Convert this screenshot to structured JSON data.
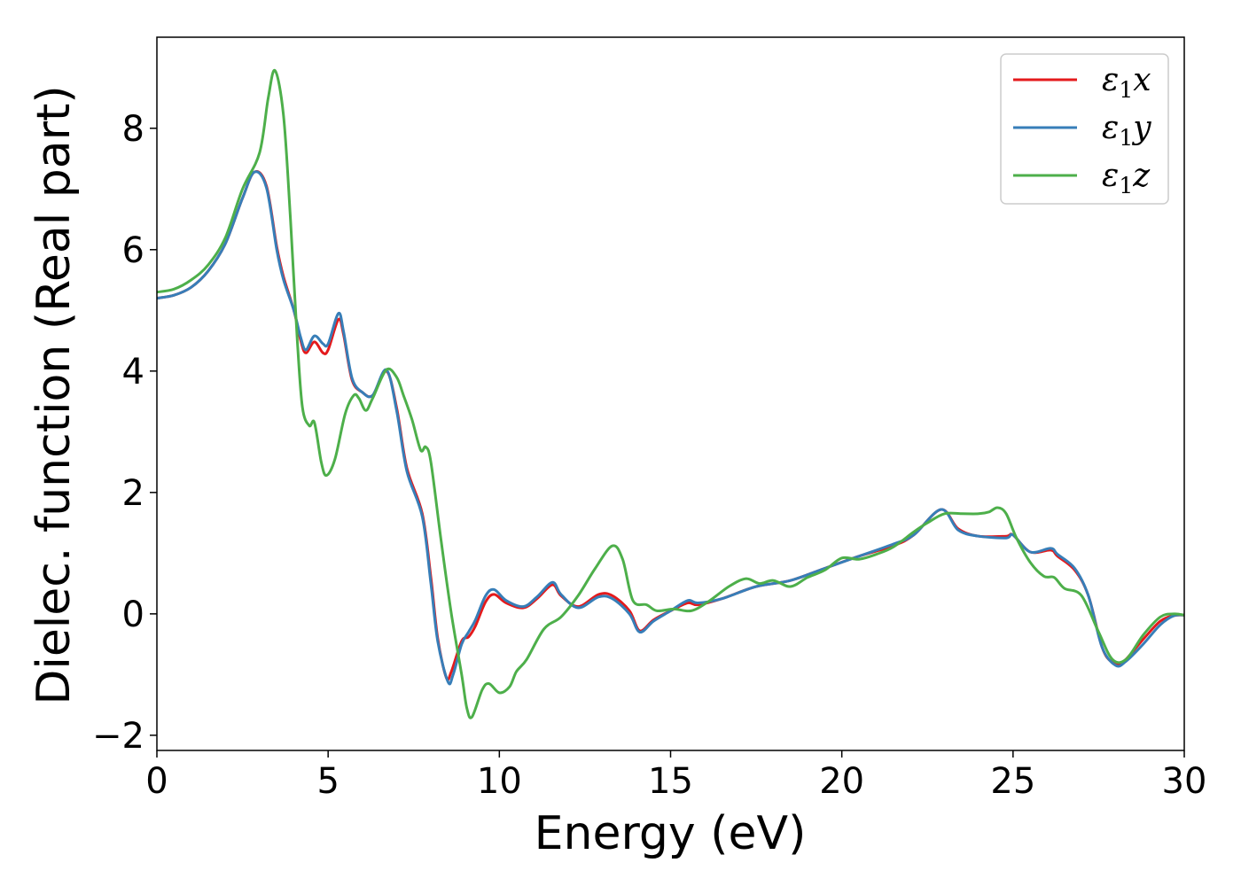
{
  "chart_data": {
    "type": "line",
    "title": "",
    "xlabel": "Energy (eV)",
    "ylabel": "Dielec. function (Real part)",
    "xlim": [
      0,
      30
    ],
    "ylim": [
      -2.25,
      9.5
    ],
    "xticks": [
      0,
      5,
      10,
      15,
      20,
      25,
      30
    ],
    "xtick_labels": [
      "0",
      "5",
      "10",
      "15",
      "20",
      "25",
      "30"
    ],
    "yticks": [
      -2,
      0,
      2,
      4,
      6,
      8
    ],
    "ytick_labels": [
      "−2",
      "0",
      "2",
      "4",
      "6",
      "8"
    ],
    "grid": false,
    "legend_position": "top-right",
    "series": [
      {
        "name": "ε₁x",
        "legend_base": "ε",
        "legend_sub": "1",
        "legend_suffix": "x",
        "color": "#e41a1c",
        "points": [
          [
            0,
            5.2
          ],
          [
            0.5,
            5.25
          ],
          [
            1,
            5.38
          ],
          [
            1.5,
            5.65
          ],
          [
            2,
            6.1
          ],
          [
            2.5,
            6.85
          ],
          [
            2.85,
            7.28
          ],
          [
            3.2,
            7.05
          ],
          [
            3.5,
            6.05
          ],
          [
            3.7,
            5.55
          ],
          [
            4.0,
            5.0
          ],
          [
            4.2,
            4.5
          ],
          [
            4.35,
            4.3
          ],
          [
            4.6,
            4.48
          ],
          [
            4.85,
            4.3
          ],
          [
            5.0,
            4.35
          ],
          [
            5.3,
            4.85
          ],
          [
            5.45,
            4.6
          ],
          [
            5.7,
            3.85
          ],
          [
            6.0,
            3.65
          ],
          [
            6.3,
            3.6
          ],
          [
            6.7,
            4.0
          ],
          [
            7.0,
            3.4
          ],
          [
            7.3,
            2.4
          ],
          [
            7.75,
            1.65
          ],
          [
            8.0,
            0.6
          ],
          [
            8.2,
            -0.4
          ],
          [
            8.45,
            -1.05
          ],
          [
            8.6,
            -0.95
          ],
          [
            8.9,
            -0.45
          ],
          [
            9.1,
            -0.38
          ],
          [
            9.3,
            -0.2
          ],
          [
            9.6,
            0.2
          ],
          [
            9.85,
            0.32
          ],
          [
            10.2,
            0.18
          ],
          [
            10.7,
            0.1
          ],
          [
            11.1,
            0.25
          ],
          [
            11.55,
            0.48
          ],
          [
            11.8,
            0.3
          ],
          [
            12.3,
            0.12
          ],
          [
            12.9,
            0.32
          ],
          [
            13.3,
            0.3
          ],
          [
            13.8,
            0.05
          ],
          [
            14.1,
            -0.28
          ],
          [
            14.5,
            -0.1
          ],
          [
            15,
            0.05
          ],
          [
            15.5,
            0.18
          ],
          [
            15.8,
            0.15
          ],
          [
            16.5,
            0.25
          ],
          [
            17.5,
            0.45
          ],
          [
            18.5,
            0.55
          ],
          [
            19.5,
            0.75
          ],
          [
            20.5,
            0.95
          ],
          [
            21.5,
            1.12
          ],
          [
            22.1,
            1.3
          ],
          [
            22.9,
            1.72
          ],
          [
            23.4,
            1.4
          ],
          [
            24,
            1.28
          ],
          [
            24.8,
            1.28
          ],
          [
            25.0,
            1.3
          ],
          [
            25.5,
            1.02
          ],
          [
            26.1,
            1.05
          ],
          [
            26.3,
            0.95
          ],
          [
            26.8,
            0.72
          ],
          [
            27.2,
            0.3
          ],
          [
            27.6,
            -0.55
          ],
          [
            27.9,
            -0.8
          ],
          [
            28.2,
            -0.8
          ],
          [
            28.8,
            -0.42
          ],
          [
            29.3,
            -0.12
          ],
          [
            29.7,
            -0.03
          ],
          [
            30,
            -0.02
          ]
        ]
      },
      {
        "name": "ε₁y",
        "legend_base": "ε",
        "legend_sub": "1",
        "legend_suffix": "y",
        "color": "#377eb8",
        "points": [
          [
            0,
            5.2
          ],
          [
            0.5,
            5.25
          ],
          [
            1,
            5.38
          ],
          [
            1.5,
            5.65
          ],
          [
            2,
            6.1
          ],
          [
            2.5,
            6.85
          ],
          [
            2.85,
            7.28
          ],
          [
            3.2,
            7.02
          ],
          [
            3.5,
            6.0
          ],
          [
            3.7,
            5.5
          ],
          [
            4.0,
            5.0
          ],
          [
            4.2,
            4.55
          ],
          [
            4.35,
            4.35
          ],
          [
            4.6,
            4.58
          ],
          [
            4.85,
            4.45
          ],
          [
            5.0,
            4.45
          ],
          [
            5.3,
            4.95
          ],
          [
            5.45,
            4.65
          ],
          [
            5.7,
            3.88
          ],
          [
            6.0,
            3.65
          ],
          [
            6.3,
            3.6
          ],
          [
            6.7,
            4.02
          ],
          [
            7.0,
            3.35
          ],
          [
            7.3,
            2.35
          ],
          [
            7.75,
            1.6
          ],
          [
            8.0,
            0.5
          ],
          [
            8.2,
            -0.45
          ],
          [
            8.5,
            -1.12
          ],
          [
            8.65,
            -1.0
          ],
          [
            8.9,
            -0.5
          ],
          [
            9.1,
            -0.3
          ],
          [
            9.3,
            -0.1
          ],
          [
            9.6,
            0.3
          ],
          [
            9.85,
            0.4
          ],
          [
            10.2,
            0.22
          ],
          [
            10.7,
            0.12
          ],
          [
            11.1,
            0.28
          ],
          [
            11.55,
            0.52
          ],
          [
            11.8,
            0.32
          ],
          [
            12.3,
            0.1
          ],
          [
            12.9,
            0.28
          ],
          [
            13.3,
            0.25
          ],
          [
            13.8,
            0.0
          ],
          [
            14.1,
            -0.3
          ],
          [
            14.5,
            -0.12
          ],
          [
            15,
            0.05
          ],
          [
            15.5,
            0.22
          ],
          [
            15.8,
            0.18
          ],
          [
            16.5,
            0.25
          ],
          [
            17.5,
            0.45
          ],
          [
            18.5,
            0.55
          ],
          [
            19.5,
            0.75
          ],
          [
            20.5,
            0.95
          ],
          [
            21.5,
            1.15
          ],
          [
            22.1,
            1.3
          ],
          [
            22.9,
            1.72
          ],
          [
            23.4,
            1.38
          ],
          [
            24,
            1.28
          ],
          [
            24.8,
            1.25
          ],
          [
            25.0,
            1.3
          ],
          [
            25.5,
            1.02
          ],
          [
            26.1,
            1.08
          ],
          [
            26.3,
            0.98
          ],
          [
            26.8,
            0.75
          ],
          [
            27.2,
            0.3
          ],
          [
            27.6,
            -0.55
          ],
          [
            28.0,
            -0.85
          ],
          [
            28.3,
            -0.78
          ],
          [
            28.8,
            -0.5
          ],
          [
            29.3,
            -0.18
          ],
          [
            29.7,
            -0.03
          ],
          [
            30,
            -0.02
          ]
        ]
      },
      {
        "name": "ε₁z",
        "legend_base": "ε",
        "legend_sub": "1",
        "legend_suffix": "z",
        "color": "#4daf4a",
        "points": [
          [
            0,
            5.3
          ],
          [
            0.5,
            5.35
          ],
          [
            1,
            5.5
          ],
          [
            1.5,
            5.75
          ],
          [
            2,
            6.2
          ],
          [
            2.5,
            7.0
          ],
          [
            3.0,
            7.6
          ],
          [
            3.25,
            8.5
          ],
          [
            3.45,
            8.95
          ],
          [
            3.7,
            8.2
          ],
          [
            3.9,
            6.5
          ],
          [
            4.1,
            4.5
          ],
          [
            4.25,
            3.4
          ],
          [
            4.45,
            3.1
          ],
          [
            4.6,
            3.15
          ],
          [
            4.8,
            2.5
          ],
          [
            4.95,
            2.28
          ],
          [
            5.2,
            2.55
          ],
          [
            5.5,
            3.3
          ],
          [
            5.75,
            3.6
          ],
          [
            5.9,
            3.55
          ],
          [
            6.1,
            3.35
          ],
          [
            6.3,
            3.55
          ],
          [
            6.7,
            4.02
          ],
          [
            7.0,
            3.9
          ],
          [
            7.2,
            3.6
          ],
          [
            7.45,
            3.2
          ],
          [
            7.7,
            2.7
          ],
          [
            7.85,
            2.75
          ],
          [
            8.0,
            2.5
          ],
          [
            8.3,
            1.2
          ],
          [
            8.6,
            0.0
          ],
          [
            8.9,
            -1.0
          ],
          [
            9.05,
            -1.55
          ],
          [
            9.2,
            -1.7
          ],
          [
            9.5,
            -1.25
          ],
          [
            9.7,
            -1.15
          ],
          [
            10.0,
            -1.3
          ],
          [
            10.3,
            -1.2
          ],
          [
            10.5,
            -0.95
          ],
          [
            10.8,
            -0.75
          ],
          [
            11.3,
            -0.25
          ],
          [
            11.8,
            -0.05
          ],
          [
            12.3,
            0.3
          ],
          [
            12.8,
            0.75
          ],
          [
            13.3,
            1.12
          ],
          [
            13.6,
            0.9
          ],
          [
            13.9,
            0.22
          ],
          [
            14.3,
            0.15
          ],
          [
            14.6,
            0.05
          ],
          [
            15.1,
            0.08
          ],
          [
            15.6,
            0.05
          ],
          [
            16.1,
            0.2
          ],
          [
            16.7,
            0.45
          ],
          [
            17.2,
            0.58
          ],
          [
            17.6,
            0.5
          ],
          [
            18.0,
            0.55
          ],
          [
            18.5,
            0.45
          ],
          [
            19,
            0.6
          ],
          [
            19.5,
            0.72
          ],
          [
            20,
            0.92
          ],
          [
            20.5,
            0.9
          ],
          [
            21.0,
            0.98
          ],
          [
            21.5,
            1.1
          ],
          [
            22.1,
            1.35
          ],
          [
            22.5,
            1.5
          ],
          [
            23.0,
            1.65
          ],
          [
            23.5,
            1.65
          ],
          [
            24.0,
            1.65
          ],
          [
            24.3,
            1.68
          ],
          [
            24.55,
            1.75
          ],
          [
            24.8,
            1.65
          ],
          [
            25.1,
            1.25
          ],
          [
            25.5,
            0.85
          ],
          [
            25.9,
            0.62
          ],
          [
            26.2,
            0.6
          ],
          [
            26.5,
            0.42
          ],
          [
            27.0,
            0.3
          ],
          [
            27.5,
            -0.3
          ],
          [
            27.9,
            -0.75
          ],
          [
            28.3,
            -0.75
          ],
          [
            28.8,
            -0.35
          ],
          [
            29.3,
            -0.05
          ],
          [
            29.7,
            0.0
          ],
          [
            30,
            -0.02
          ]
        ]
      }
    ]
  }
}
